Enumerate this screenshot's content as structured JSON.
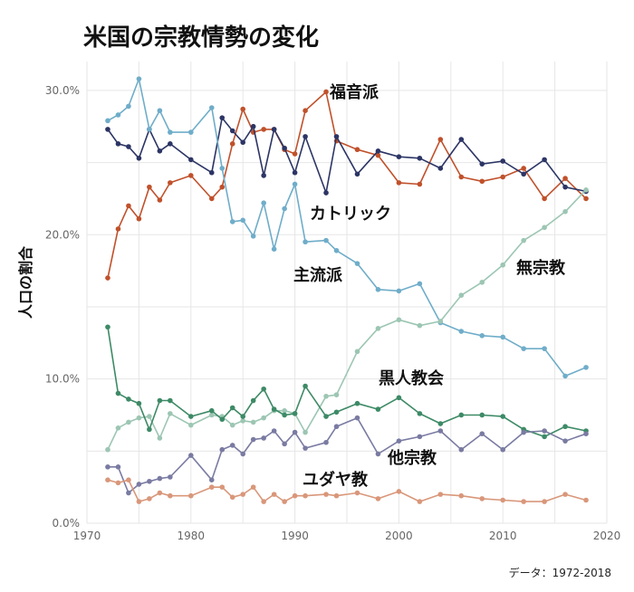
{
  "chart_data": {
    "type": "line",
    "title": "米国の宗教情勢の変化",
    "ylabel": "人口の割合",
    "caption": "データ：1972-2018",
    "xlim": [
      1970,
      2020
    ],
    "ylim": [
      0,
      32
    ],
    "xticks": [
      1970,
      1980,
      1990,
      2000,
      2010,
      2020
    ],
    "xtick_labels": [
      "1970",
      "1980",
      "1990",
      "2000",
      "2010",
      "2020"
    ],
    "yticks": [
      0,
      10,
      20,
      30
    ],
    "ytick_labels": [
      "0.0%",
      "10.0%",
      "20.0%",
      "30.0%"
    ],
    "series": [
      {
        "name": "福音派",
        "color": "#c0512b",
        "x": [
          1972,
          1973,
          1974,
          1975,
          1976,
          1977,
          1978,
          1980,
          1982,
          1983,
          1984,
          1985,
          1986,
          1987,
          1988,
          1989,
          1990,
          1991,
          1993,
          1994,
          1996,
          1998,
          2000,
          2002,
          2004,
          2006,
          2008,
          2010,
          2012,
          2014,
          2016,
          2018
        ],
        "y": [
          17.0,
          20.4,
          22.0,
          21.1,
          23.3,
          22.4,
          23.6,
          24.1,
          22.5,
          23.3,
          26.3,
          28.7,
          27.1,
          27.3,
          27.3,
          25.9,
          25.6,
          28.6,
          29.9,
          26.5,
          25.9,
          25.5,
          23.6,
          23.5,
          26.6,
          24.0,
          23.7,
          24.0,
          24.6,
          22.5,
          23.9,
          22.5
        ]
      },
      {
        "name": "カトリック",
        "color": "#2c3565",
        "x": [
          1972,
          1973,
          1974,
          1975,
          1976,
          1977,
          1978,
          1980,
          1982,
          1983,
          1984,
          1985,
          1986,
          1987,
          1988,
          1989,
          1990,
          1991,
          1993,
          1994,
          1996,
          1998,
          2000,
          2002,
          2004,
          2006,
          2008,
          2010,
          2012,
          2014,
          2016,
          2018
        ],
        "y": [
          27.3,
          26.3,
          26.1,
          25.3,
          27.3,
          25.8,
          26.3,
          25.2,
          24.3,
          28.1,
          27.2,
          26.4,
          27.5,
          24.1,
          27.3,
          26.0,
          24.3,
          26.8,
          22.9,
          26.8,
          24.2,
          25.8,
          25.4,
          25.3,
          24.6,
          26.6,
          24.9,
          25.1,
          24.2,
          25.2,
          23.3,
          23.0
        ]
      },
      {
        "name": "主流派",
        "color": "#6fadc9",
        "x": [
          1972,
          1973,
          1974,
          1975,
          1976,
          1977,
          1978,
          1980,
          1982,
          1983,
          1984,
          1985,
          1986,
          1987,
          1988,
          1989,
          1990,
          1991,
          1993,
          1994,
          1996,
          1998,
          2000,
          2002,
          2004,
          2006,
          2008,
          2010,
          2012,
          2014,
          2016,
          2018
        ],
        "y": [
          27.9,
          28.3,
          28.9,
          30.8,
          27.3,
          28.6,
          27.1,
          27.1,
          28.8,
          24.6,
          20.9,
          21.0,
          19.9,
          22.2,
          19.0,
          21.8,
          23.5,
          19.5,
          19.6,
          18.9,
          18.0,
          16.2,
          16.1,
          16.6,
          13.9,
          13.3,
          13.0,
          12.9,
          12.1,
          12.1,
          10.2,
          10.8
        ]
      },
      {
        "name": "無宗教",
        "color": "#9cc6b3",
        "x": [
          1972,
          1973,
          1974,
          1975,
          1976,
          1977,
          1978,
          1980,
          1982,
          1983,
          1984,
          1985,
          1986,
          1987,
          1988,
          1989,
          1990,
          1991,
          1993,
          1994,
          1996,
          1998,
          2000,
          2002,
          2004,
          2006,
          2008,
          2010,
          2012,
          2014,
          2016,
          2018
        ],
        "y": [
          5.1,
          6.6,
          7.0,
          7.3,
          7.4,
          5.9,
          7.6,
          6.8,
          7.5,
          7.4,
          6.8,
          7.1,
          7.0,
          7.3,
          7.8,
          7.8,
          7.6,
          6.3,
          8.8,
          8.9,
          11.9,
          13.5,
          14.1,
          13.7,
          14.0,
          15.8,
          16.7,
          17.9,
          19.6,
          20.5,
          21.6,
          23.1
        ]
      },
      {
        "name": "黒人教会",
        "color": "#3d8a66",
        "x": [
          1972,
          1973,
          1974,
          1975,
          1976,
          1977,
          1978,
          1980,
          1982,
          1983,
          1984,
          1985,
          1986,
          1987,
          1988,
          1989,
          1990,
          1991,
          1993,
          1994,
          1996,
          1998,
          2000,
          2002,
          2004,
          2006,
          2008,
          2010,
          2012,
          2014,
          2016,
          2018
        ],
        "y": [
          13.6,
          9.0,
          8.6,
          8.3,
          6.5,
          8.5,
          8.5,
          7.4,
          7.8,
          7.2,
          8.0,
          7.4,
          8.5,
          9.3,
          7.9,
          7.5,
          7.6,
          9.5,
          7.4,
          7.7,
          8.3,
          7.9,
          8.7,
          7.6,
          6.9,
          7.5,
          7.5,
          7.4,
          6.5,
          6.0,
          6.7,
          6.4
        ]
      },
      {
        "name": "他宗教",
        "color": "#7a7ba2",
        "x": [
          1972,
          1973,
          1974,
          1975,
          1976,
          1977,
          1978,
          1980,
          1982,
          1983,
          1984,
          1985,
          1986,
          1987,
          1988,
          1989,
          1990,
          1991,
          1993,
          1994,
          1996,
          1998,
          2000,
          2002,
          2004,
          2006,
          2008,
          2010,
          2012,
          2014,
          2016,
          2018
        ],
        "y": [
          3.9,
          3.9,
          2.1,
          2.7,
          2.9,
          3.1,
          3.2,
          4.7,
          3.0,
          5.1,
          5.4,
          4.8,
          5.8,
          5.9,
          6.4,
          5.5,
          6.3,
          5.2,
          5.6,
          6.7,
          7.3,
          4.8,
          5.7,
          6.0,
          6.4,
          5.1,
          6.2,
          5.1,
          6.3,
          6.4,
          5.7,
          6.2
        ]
      },
      {
        "name": "ユダヤ教",
        "color": "#d9977a",
        "x": [
          1972,
          1973,
          1974,
          1975,
          1976,
          1977,
          1978,
          1980,
          1982,
          1983,
          1984,
          1985,
          1986,
          1987,
          1988,
          1989,
          1990,
          1991,
          1993,
          1994,
          1996,
          1998,
          2000,
          2002,
          2004,
          2006,
          2008,
          2010,
          2012,
          2014,
          2016,
          2018
        ],
        "y": [
          3.0,
          2.8,
          3.0,
          1.5,
          1.7,
          2.1,
          1.9,
          1.9,
          2.5,
          2.5,
          1.8,
          2.0,
          2.5,
          1.5,
          2.0,
          1.5,
          1.9,
          1.9,
          2.0,
          1.9,
          2.1,
          1.7,
          2.2,
          1.5,
          2.0,
          1.9,
          1.7,
          1.6,
          1.5,
          1.5,
          2.0,
          1.6
        ]
      }
    ]
  }
}
